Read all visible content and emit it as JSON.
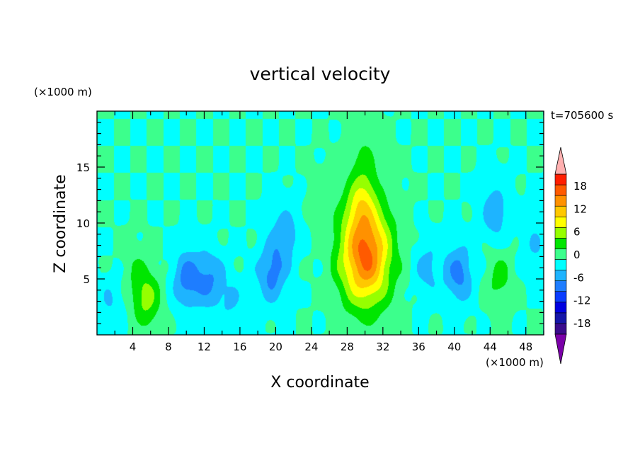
{
  "chart_data": {
    "type": "heatmap",
    "title": "vertical velocity",
    "xlabel": "X coordinate",
    "ylabel": "Z coordinate",
    "x_unit": "(×1000 m)",
    "y_unit": "(×1000 m)",
    "time_label": "t=705600 s",
    "xlim": [
      0,
      50
    ],
    "ylim": [
      0,
      20
    ],
    "x_ticks": [
      4,
      8,
      12,
      16,
      20,
      24,
      28,
      32,
      36,
      40,
      44,
      48
    ],
    "y_ticks": [
      5,
      10,
      15
    ],
    "colorbar": {
      "labels": [
        18,
        12,
        6,
        0,
        -6,
        -12,
        -18
      ],
      "levels": [
        -21,
        -18,
        -15,
        -12,
        -9,
        -6,
        -3,
        0,
        3,
        6,
        9,
        12,
        15,
        18,
        21
      ],
      "colors": [
        "#3a0b8c",
        "#1515a8",
        "#0000e0",
        "#0a3cff",
        "#1e7dff",
        "#1eb4ff",
        "#00ffff",
        "#3cff8c",
        "#00e600",
        "#96ff00",
        "#ffff00",
        "#ffc800",
        "#ff9100",
        "#ff5a00",
        "#ff1e00"
      ],
      "over_color": "#ffb0b0",
      "under_color": "#7a00a8"
    },
    "features": [
      {
        "x": 30,
        "z": 7.2,
        "peak": 19
      },
      {
        "x": 29.5,
        "z": 12,
        "peak": 6
      },
      {
        "x": 30,
        "z": 16,
        "peak": 3
      },
      {
        "x": 5.5,
        "z": 3.3,
        "peak": 7
      },
      {
        "x": 45,
        "z": 5,
        "peak": 4
      },
      {
        "x": 4,
        "z": 6,
        "peak": 2
      },
      {
        "x": 10,
        "z": 5,
        "peak": -7
      },
      {
        "x": 12.5,
        "z": 5,
        "peak": -6
      },
      {
        "x": 19.5,
        "z": 5.5,
        "peak": -7
      },
      {
        "x": 21,
        "z": 9,
        "peak": -5
      },
      {
        "x": 40.5,
        "z": 5.5,
        "peak": -7
      },
      {
        "x": 44.5,
        "z": 11,
        "peak": -5
      },
      {
        "x": 15,
        "z": 3,
        "peak": -3
      },
      {
        "x": 37,
        "z": 6,
        "peak": -4
      },
      {
        "x": 1.5,
        "z": 3,
        "peak": -3
      },
      {
        "x": 25,
        "z": 12,
        "peak": 1
      },
      {
        "x": 49,
        "z": 8,
        "peak": -3
      }
    ]
  }
}
